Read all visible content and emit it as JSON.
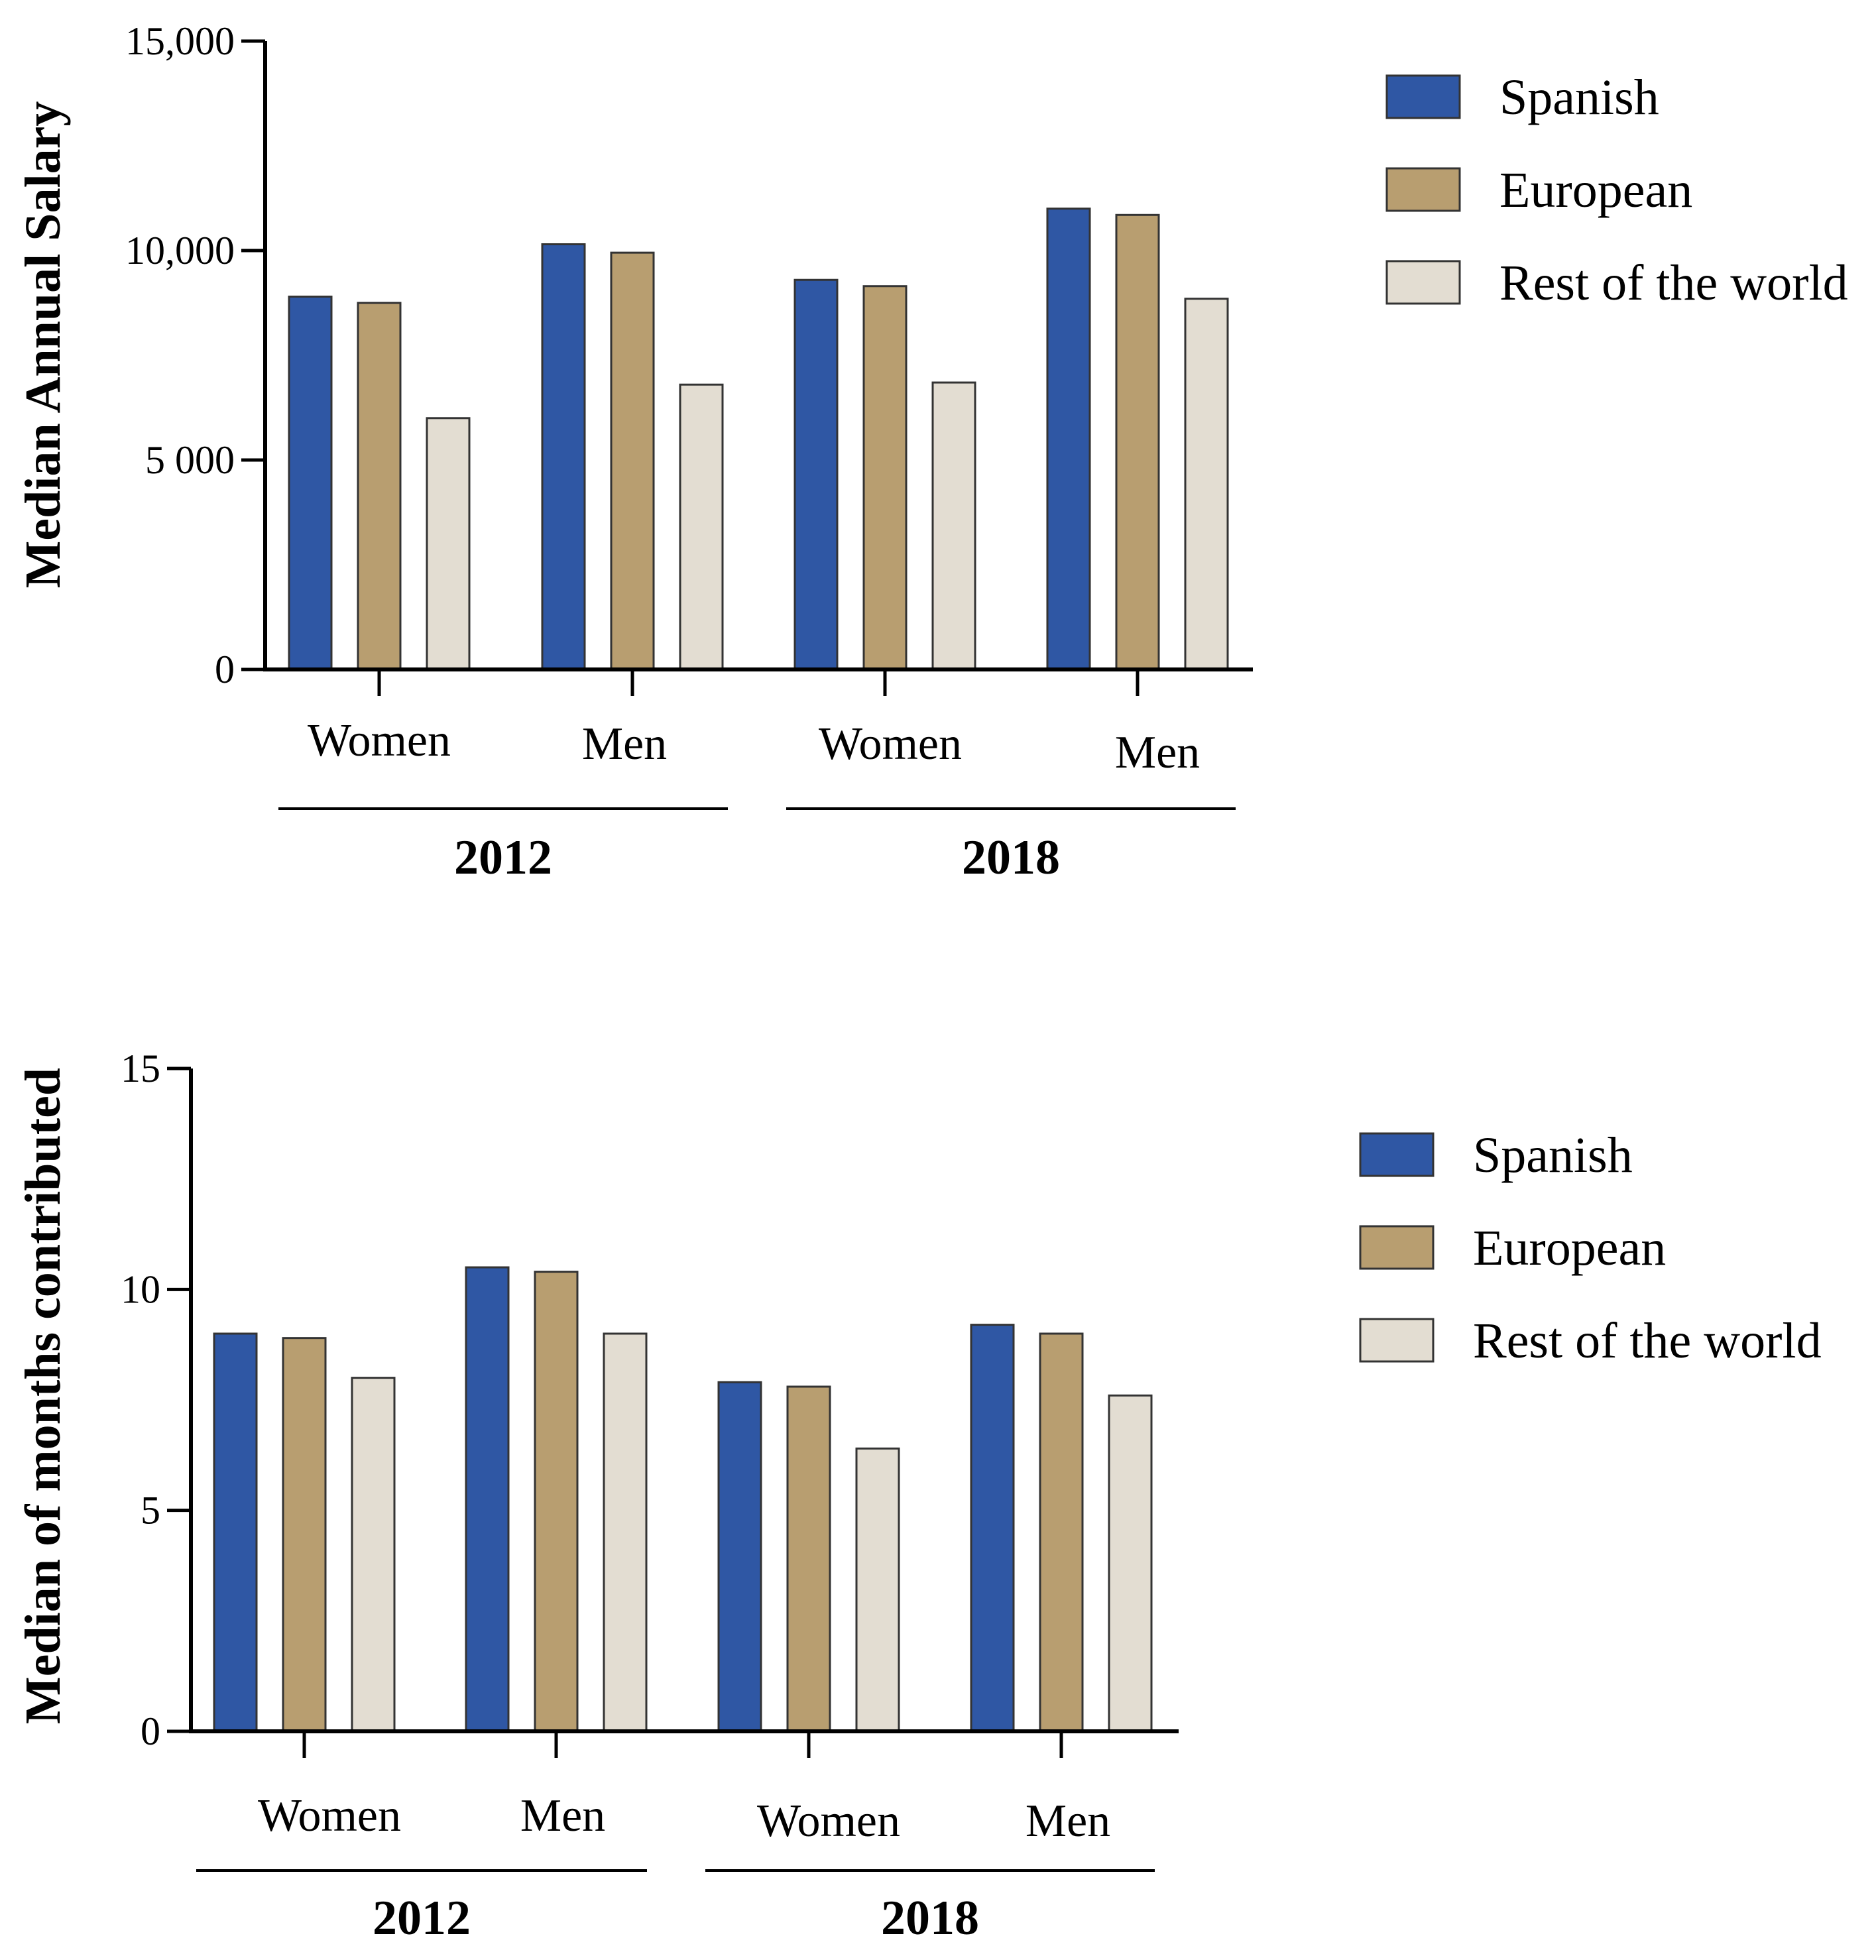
{
  "chart_data": [
    {
      "type": "bar",
      "ylabel": "Median Annual Salary",
      "xlabel": "",
      "ylim": [
        0,
        15000
      ],
      "yticks": [
        0,
        5000,
        10000,
        15000
      ],
      "ytick_labels": [
        "0",
        "5 000",
        "10,000",
        "15,000"
      ],
      "categories": [
        "Women",
        "Men",
        "Women",
        "Men"
      ],
      "groups": [
        {
          "label": "2012",
          "categories": [
            "Women",
            "Men"
          ]
        },
        {
          "label": "2018",
          "categories": [
            "Women",
            "Men"
          ]
        }
      ],
      "series": [
        {
          "name": "Spanish",
          "color": "#2f57a4",
          "values": [
            8900,
            10150,
            9300,
            11000
          ]
        },
        {
          "name": "European",
          "color": "#b89e70",
          "values": [
            8750,
            9950,
            9150,
            10850
          ]
        },
        {
          "name": "Rest of the world",
          "color": "#e3ddd2",
          "values": [
            6000,
            6800,
            6850,
            8850
          ]
        }
      ],
      "legend": "top-right"
    },
    {
      "type": "bar",
      "ylabel": "Median of months contributed",
      "xlabel": "",
      "ylim": [
        0,
        15
      ],
      "yticks": [
        0,
        5,
        10,
        15
      ],
      "ytick_labels": [
        "0",
        "5",
        "10",
        "15"
      ],
      "categories": [
        "Women",
        "Men",
        "Women",
        "Men"
      ],
      "groups": [
        {
          "label": "2012",
          "categories": [
            "Women",
            "Men"
          ]
        },
        {
          "label": "2018",
          "categories": [
            "Women",
            "Men"
          ]
        }
      ],
      "series": [
        {
          "name": "Spanish",
          "color": "#2f57a4",
          "values": [
            9.0,
            10.5,
            7.9,
            9.2
          ]
        },
        {
          "name": "European",
          "color": "#b89e70",
          "values": [
            8.9,
            10.4,
            7.8,
            9.0
          ]
        },
        {
          "name": "Rest of the world",
          "color": "#e3ddd2",
          "values": [
            8.0,
            9.0,
            6.4,
            7.6
          ]
        }
      ],
      "legend": "right"
    }
  ]
}
